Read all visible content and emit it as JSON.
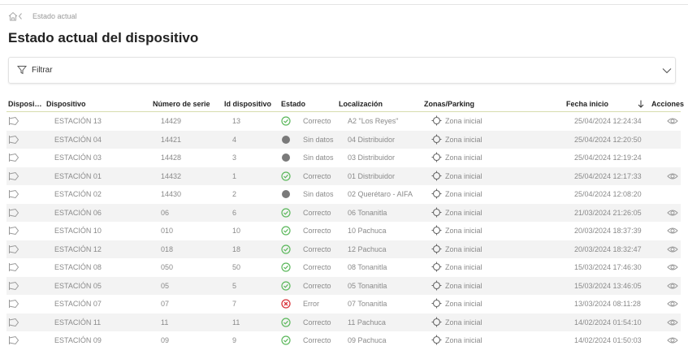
{
  "breadcrumb": {
    "current": "Estado actual"
  },
  "header": {
    "title": "Estado actual del dispositivo"
  },
  "filter": {
    "label": "Filtrar"
  },
  "table": {
    "columns": [
      "Disposi…",
      "Dispositivo",
      "Número de serie",
      "Id dispositivo",
      "Estado",
      "Localización",
      "Zonas/Parking",
      "Fecha inicio",
      "Acciones"
    ],
    "rows": [
      {
        "cells": [
          "ESTACIÓN 13",
          "14429",
          "13",
          "Correcto",
          "A2 \"Los Reyes\"",
          "Zona inicial",
          "25/04/2024 12:24:34"
        ],
        "status": "ok",
        "view": true
      },
      {
        "cells": [
          "ESTACIÓN 04",
          "14421",
          "4",
          "Sin datos",
          "04 Distribuidor",
          "Zona inicial",
          "25/04/2024 12:20:50"
        ],
        "status": "none",
        "view": false
      },
      {
        "cells": [
          "ESTACIÓN 03",
          "14428",
          "3",
          "Sin datos",
          "03 Distribuidor",
          "Zona inicial",
          "25/04/2024 12:19:24"
        ],
        "status": "none",
        "view": false
      },
      {
        "cells": [
          "ESTACIÓN 01",
          "14432",
          "1",
          "Correcto",
          "01 Distribuidor",
          "Zona inicial",
          "25/04/2024 12:17:33"
        ],
        "status": "ok",
        "view": true
      },
      {
        "cells": [
          "ESTACIÓN 02",
          "14430",
          "2",
          "Sin datos",
          "02 Querétaro - AIFA",
          "Zona inicial",
          "25/04/2024 12:08:20"
        ],
        "status": "none",
        "view": false
      },
      {
        "cells": [
          "ESTACIÓN 06",
          "06",
          "6",
          "Correcto",
          "06 Tonanitla",
          "Zona inicial",
          "21/03/2024 21:26:05"
        ],
        "status": "ok",
        "view": true
      },
      {
        "cells": [
          "ESTACIÓN 10",
          "010",
          "10",
          "Correcto",
          "10 Pachuca",
          "Zona inicial",
          "20/03/2024 18:37:39"
        ],
        "status": "ok",
        "view": true
      },
      {
        "cells": [
          "ESTACIÓN 12",
          "018",
          "18",
          "Correcto",
          "12 Pachuca",
          "Zona inicial",
          "20/03/2024 18:32:47"
        ],
        "status": "ok",
        "view": true
      },
      {
        "cells": [
          "ESTACIÓN 08",
          "050",
          "50",
          "Correcto",
          "08 Tonanitla",
          "Zona inicial",
          "15/03/2024 17:46:30"
        ],
        "status": "ok",
        "view": true
      },
      {
        "cells": [
          "ESTACIÓN 05",
          "05",
          "5",
          "Correcto",
          "05 Tonanitla",
          "Zona inicial",
          "15/03/2024 13:46:05"
        ],
        "status": "ok",
        "view": true
      },
      {
        "cells": [
          "ESTACIÓN 07",
          "07",
          "7",
          "Error",
          "07 Tonanitla",
          "Zona inicial",
          "13/03/2024 08:11:28"
        ],
        "status": "error",
        "view": true
      },
      {
        "cells": [
          "ESTACIÓN 11",
          "11",
          "11",
          "Correcto",
          "11 Pachuca",
          "Zona inicial",
          "14/02/2024 01:54:10"
        ],
        "status": "ok",
        "view": true
      },
      {
        "cells": [
          "ESTACIÓN 09",
          "09",
          "9",
          "Correcto",
          "09 Pachuca",
          "Zona inicial",
          "14/02/2024 01:50:03"
        ],
        "status": "ok",
        "view": true
      }
    ]
  }
}
